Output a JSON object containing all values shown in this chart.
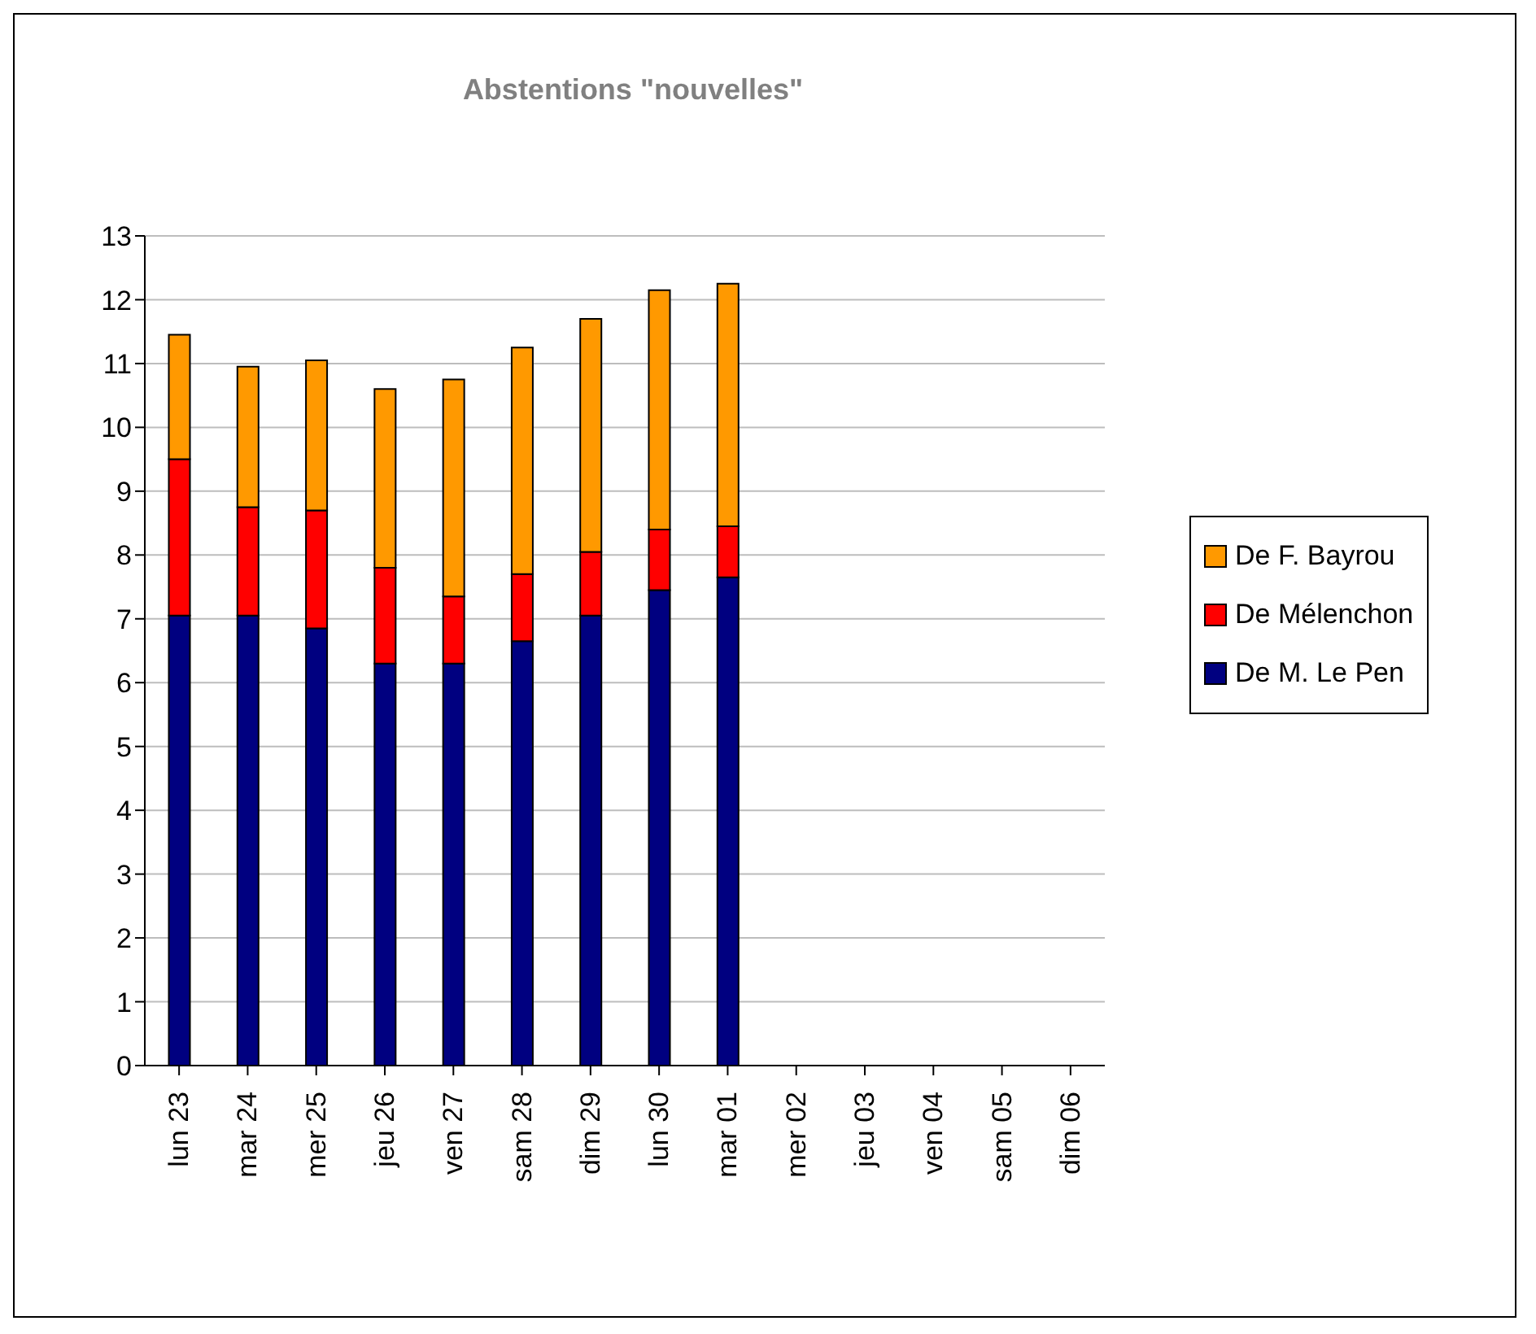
{
  "chart_data": {
    "type": "bar",
    "title": "Abstentions \"nouvelles\"",
    "stacked": true,
    "categories": [
      "lun 23",
      "mar 24",
      "mer 25",
      "jeu 26",
      "ven 27",
      "sam 28",
      "dim 29",
      "lun 30",
      "mar 01",
      "mer 02",
      "jeu 03",
      "ven 04",
      "sam 05",
      "dim 06"
    ],
    "series": [
      {
        "name": "De M. Le Pen",
        "color": "#000080",
        "values": [
          7.05,
          7.05,
          6.85,
          6.3,
          6.3,
          6.65,
          7.05,
          7.45,
          7.65,
          null,
          null,
          null,
          null,
          null
        ]
      },
      {
        "name": "De Mélenchon",
        "color": "#ff0000",
        "values": [
          2.45,
          1.7,
          1.85,
          1.5,
          1.05,
          1.05,
          1.0,
          0.95,
          0.8,
          null,
          null,
          null,
          null,
          null
        ]
      },
      {
        "name": "De F. Bayrou",
        "color": "#ff9900",
        "values": [
          1.95,
          2.2,
          2.35,
          2.8,
          3.4,
          3.55,
          3.65,
          3.75,
          3.8,
          null,
          null,
          null,
          null,
          null
        ]
      }
    ],
    "ylim": [
      0,
      13
    ],
    "yticks": [
      0,
      1,
      2,
      3,
      4,
      5,
      6,
      7,
      8,
      9,
      10,
      11,
      12,
      13
    ],
    "grid": "y",
    "legend": "right"
  }
}
